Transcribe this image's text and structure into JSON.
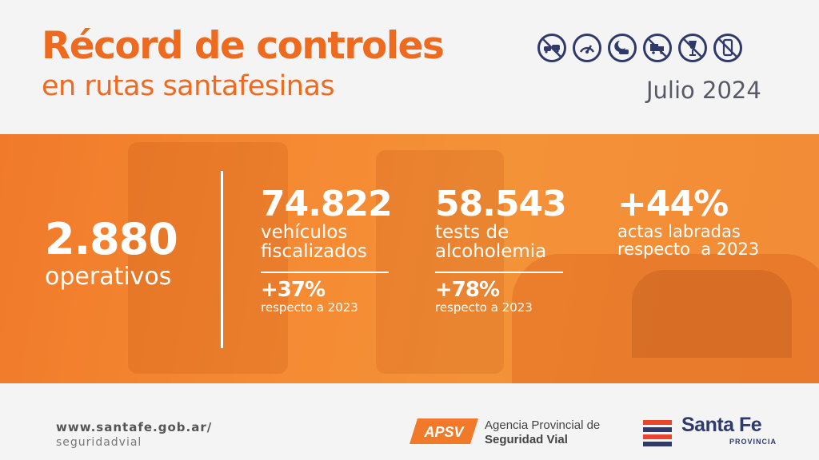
{
  "header": {
    "title_line1": "Récord de controles",
    "title_line2": "en rutas santafesinas",
    "date": "Julio 2024",
    "icons": [
      "no-overtaking-icon",
      "speedometer-icon",
      "night-driving-icon",
      "no-passing-trucks-icon",
      "no-alcohol-icon",
      "no-phone-icon"
    ]
  },
  "stats": {
    "operativos": {
      "value": "2.880",
      "label": "operativos"
    },
    "vehiculos": {
      "value": "74.822",
      "label_line1": "vehículos",
      "label_line2": "fiscalizados",
      "change": "+37%",
      "change_label": "respecto a 2023"
    },
    "alcoholemia": {
      "value": "58.543",
      "label_line1": "tests de",
      "label_line2": "alcoholemia",
      "change": "+78%",
      "change_label": "respecto a 2023"
    },
    "actas": {
      "value": "+44%",
      "label_line1": "actas labradas",
      "label_line2": "respecto  a 2023"
    }
  },
  "footer": {
    "url_line1": "www.santafe.gob.ar/",
    "url_line2": "seguridadvial",
    "apsv_logo_text": "APSV",
    "apsv_name_line1": "Agencia Provincial de",
    "apsv_name_line2": "Seguridad Vial",
    "province_name": "Santa Fe",
    "province_sub": "PROVINCIA"
  },
  "colors": {
    "accent_orange": "#ee6a1f",
    "navy": "#2f3a6b",
    "band_orange": "#f28b36"
  }
}
